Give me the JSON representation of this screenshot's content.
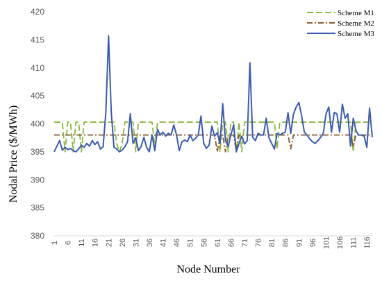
{
  "chart_data": {
    "type": "line",
    "title": "",
    "xlabel": "Node Number",
    "ylabel": "Nodal Price  ($/MWh)",
    "ylim": [
      380,
      420
    ],
    "xlim": [
      1,
      118
    ],
    "yticks": [
      "380",
      "385",
      "390",
      "395",
      "400",
      "405",
      "410",
      "415",
      "420"
    ],
    "xticks": [
      1,
      6,
      11,
      16,
      21,
      26,
      31,
      36,
      41,
      46,
      51,
      56,
      61,
      66,
      71,
      76,
      81,
      86,
      91,
      96,
      101,
      106,
      111,
      116
    ],
    "grid": "none",
    "legend_position": "top-right",
    "x": [
      1,
      2,
      3,
      4,
      5,
      6,
      7,
      8,
      9,
      10,
      11,
      12,
      13,
      14,
      15,
      16,
      17,
      18,
      19,
      20,
      21,
      22,
      23,
      24,
      25,
      26,
      27,
      28,
      29,
      30,
      31,
      32,
      33,
      34,
      35,
      36,
      37,
      38,
      39,
      40,
      41,
      42,
      43,
      44,
      45,
      46,
      47,
      48,
      49,
      50,
      51,
      52,
      53,
      54,
      55,
      56,
      57,
      58,
      59,
      60,
      61,
      62,
      63,
      64,
      65,
      66,
      67,
      68,
      69,
      70,
      71,
      72,
      73,
      74,
      75,
      76,
      77,
      78,
      79,
      80,
      81,
      82,
      83,
      84,
      85,
      86,
      87,
      88,
      89,
      90,
      91,
      92,
      93,
      94,
      95,
      96,
      97,
      98,
      99,
      100,
      101,
      102,
      103,
      104,
      105,
      106,
      107,
      108,
      109,
      110,
      111,
      112,
      113,
      114,
      115,
      116,
      117,
      118
    ],
    "series": [
      {
        "name": "Scheme M1",
        "color": "#8DB83A",
        "dash": "long-dash",
        "values": [
          400.3,
          400.3,
          400.3,
          400.3,
          395.0,
          400.3,
          400.3,
          395.0,
          400.3,
          400.3,
          395.0,
          400.3,
          400.3,
          400.3,
          400.3,
          400.3,
          400.3,
          400.3,
          400.3,
          400.3,
          400.3,
          400.3,
          400.3,
          396.5,
          395.0,
          396.5,
          400.3,
          400.3,
          400.3,
          400.3,
          395.0,
          400.3,
          400.3,
          400.3,
          400.3,
          400.3,
          400.3,
          396.0,
          400.3,
          400.3,
          400.3,
          400.3,
          400.3,
          400.3,
          400.3,
          400.3,
          400.3,
          400.3,
          400.3,
          400.3,
          400.3,
          400.3,
          400.3,
          400.3,
          400.3,
          400.3,
          400.3,
          400.3,
          400.3,
          400.3,
          400.3,
          395.0,
          400.3,
          400.3,
          395.0,
          400.3,
          400.3,
          395.0,
          400.3,
          395.0,
          400.3,
          400.3,
          400.3,
          400.3,
          400.3,
          400.3,
          400.3,
          400.3,
          400.3,
          400.3,
          400.3,
          400.3,
          395.5,
          400.3,
          400.3,
          400.3,
          400.3,
          400.3,
          400.3,
          400.3,
          400.3,
          400.3,
          400.3,
          400.3,
          400.3,
          400.3,
          400.3,
          400.3,
          400.3,
          400.3,
          400.3,
          400.3,
          400.3,
          400.3,
          400.3,
          400.3,
          400.3,
          400.3,
          400.3,
          400.3,
          395.0,
          400.3,
          400.3,
          400.3,
          400.3,
          400.3,
          400.3,
          400.3
        ]
      },
      {
        "name": "Scheme M2",
        "color": "#8B5A2B",
        "dash": "dash-dot",
        "values": [
          398.0,
          398.0,
          398.0,
          398.0,
          398.0,
          398.0,
          398.0,
          398.0,
          398.0,
          398.0,
          398.0,
          398.0,
          398.0,
          398.0,
          398.0,
          398.0,
          398.0,
          398.0,
          398.0,
          398.0,
          398.0,
          398.0,
          398.0,
          398.0,
          398.0,
          398.0,
          398.0,
          398.0,
          398.0,
          398.0,
          398.0,
          398.0,
          398.0,
          398.0,
          398.0,
          398.0,
          398.0,
          398.0,
          398.0,
          398.0,
          398.0,
          398.0,
          398.0,
          398.0,
          398.0,
          398.0,
          398.0,
          398.0,
          398.0,
          398.0,
          398.0,
          398.0,
          398.0,
          398.0,
          398.0,
          398.0,
          398.0,
          398.0,
          398.0,
          398.0,
          395.0,
          398.0,
          398.0,
          395.0,
          398.0,
          398.0,
          398.0,
          395.0,
          398.0,
          398.0,
          398.0,
          398.0,
          398.0,
          398.0,
          398.0,
          398.0,
          398.0,
          398.0,
          398.0,
          398.0,
          398.0,
          398.0,
          398.0,
          398.0,
          398.0,
          398.0,
          398.0,
          395.5,
          398.0,
          398.0,
          398.0,
          398.0,
          398.0,
          398.0,
          398.0,
          398.0,
          398.0,
          398.0,
          398.0,
          398.0,
          398.0,
          398.0,
          398.0,
          398.0,
          398.0,
          398.0,
          398.0,
          398.0,
          398.0,
          398.0,
          396.0,
          398.0,
          398.0,
          398.0,
          398.0,
          398.0,
          398.0,
          398.0
        ]
      },
      {
        "name": "Scheme M3",
        "color": "#3A5BB5",
        "dash": "solid",
        "values": [
          395.0,
          396.0,
          397.0,
          395.3,
          395.8,
          395.4,
          395.6,
          395.2,
          395.0,
          395.5,
          396.2,
          395.8,
          396.5,
          396.0,
          397.0,
          396.3,
          396.8,
          395.5,
          395.9,
          402.0,
          415.7,
          402.0,
          395.8,
          395.5,
          395.0,
          395.3,
          395.9,
          396.8,
          401.8,
          396.5,
          397.5,
          395.2,
          396.0,
          397.6,
          395.8,
          395.0,
          398.0,
          395.2,
          399.0,
          398.0,
          398.5,
          397.8,
          398.3,
          398.0,
          399.8,
          398.0,
          395.2,
          396.8,
          397.1,
          396.8,
          398.0,
          397.0,
          397.4,
          398.0,
          401.4,
          396.5,
          395.6,
          396.2,
          399.6,
          397.8,
          398.4,
          396.5,
          403.6,
          397.0,
          396.0,
          398.0,
          399.8,
          395.0,
          396.5,
          397.8,
          396.4,
          397.0,
          410.9,
          397.6,
          397.0,
          398.3,
          398.0,
          398.0,
          401.0,
          397.5,
          396.5,
          395.5,
          398.3,
          398.0,
          398.3,
          398.5,
          402.0,
          398.3,
          401.7,
          403.0,
          403.8,
          401.5,
          398.5,
          398.0,
          397.3,
          396.8,
          396.5,
          397.0,
          397.6,
          398.3,
          401.8,
          403.0,
          398.5,
          402.0,
          401.8,
          398.5,
          403.5,
          401.0,
          401.8,
          396.0,
          401.0,
          398.8,
          398.0,
          398.0,
          397.8,
          395.8,
          402.8,
          397.6
        ]
      }
    ]
  }
}
